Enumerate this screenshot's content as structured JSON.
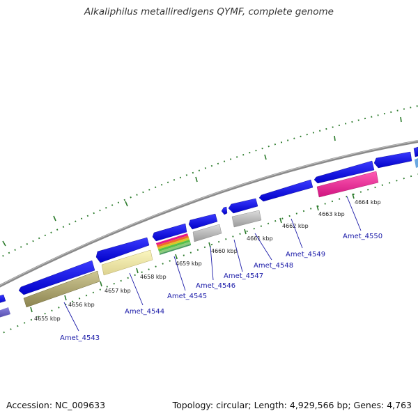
{
  "title": "Alkaliphilus metalliredigens QYMF, complete genome",
  "footer": {
    "accession": "Accession: NC_009633",
    "stats": "Topology: circular; Length: 4,929,566 bp; Genes: 4,763"
  },
  "colors": {
    "backbone": "#8a8a8a",
    "cds": "#1010e6",
    "tick": "#2a7a2a",
    "label": "#1a1aa8",
    "leader": "#1a1aa8"
  },
  "ruler": {
    "unit": "kbp",
    "labels": [
      "4655 kbp",
      "4656 kbp",
      "4657 kbp",
      "4658 kbp",
      "4659 kbp",
      "4660 kbp",
      "4661 kbp",
      "4662 kbp",
      "4663 kbp",
      "4664 kbp"
    ]
  },
  "gene_labels": [
    "Amet_4543",
    "Amet_4544",
    "Amet_4545",
    "Amet_4546",
    "Amet_4547",
    "Amet_4548",
    "Amet_4549",
    "Amet_4550"
  ]
}
